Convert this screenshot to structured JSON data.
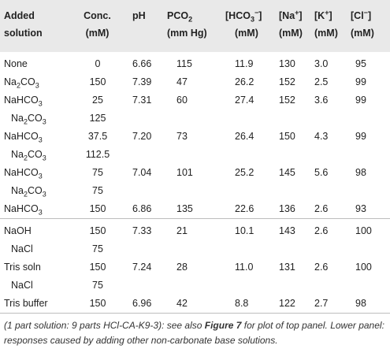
{
  "headers": {
    "solution_line1": "Added",
    "solution_line2": "solution",
    "conc": "Conc.",
    "conc_unit": "(mM)",
    "ph": "pH",
    "pco2_base": "PCO",
    "pco2_sub": "2",
    "pco2_unit": "(mm Hg)",
    "hco3_open": "[HCO",
    "hco3_sub": "3",
    "hco3_sup": "−",
    "hco3_close": "]",
    "hco3_unit": "(mM)",
    "na_open": "[Na",
    "na_sup": "+",
    "na_close": "]",
    "na_unit": "(mM)",
    "k_open": "[K",
    "k_sup": "+",
    "k_close": "]",
    "k_unit": "(mM)",
    "cl_open": "[Cl",
    "cl_sup": "−",
    "cl_close": "]",
    "cl_unit": "(mM)"
  },
  "rows": [
    {
      "solution": "None",
      "conc": "0",
      "ph": "6.66",
      "pco2": "115",
      "hco3": "11.9",
      "na": "130",
      "k": "3.0",
      "cl": "95"
    },
    {
      "solution": "Na",
      "solution_sub": "2",
      "solution_tail": "CO",
      "solution_sub2": "3",
      "conc": "150",
      "ph": "7.39",
      "pco2": "47",
      "hco3": "26.2",
      "na": "152",
      "k": "2.5",
      "cl": "99"
    },
    {
      "solution": "NaHCO",
      "solution_sub": "3",
      "conc": "25",
      "ph": "7.31",
      "pco2": "60",
      "hco3": "27.4",
      "na": "152",
      "k": "3.6",
      "cl": "99"
    },
    {
      "solution": "Na",
      "solution_sub": "2",
      "solution_tail": "CO",
      "solution_sub2": "3",
      "conc": "125"
    },
    {
      "solution": "NaHCO",
      "solution_sub": "3",
      "conc": "37.5",
      "ph": "7.20",
      "pco2": "73",
      "hco3": "26.4",
      "na": "150",
      "k": "4.3",
      "cl": "99"
    },
    {
      "solution": "Na",
      "solution_sub": "2",
      "solution_tail": "CO",
      "solution_sub2": "3",
      "conc": "112.5"
    },
    {
      "solution": "NaHCO",
      "solution_sub": "3",
      "conc": "75",
      "ph": "7.04",
      "pco2": "101",
      "hco3": "25.2",
      "na": "145",
      "k": "5.6",
      "cl": "98"
    },
    {
      "solution": "Na",
      "solution_sub": "2",
      "solution_tail": "CO",
      "solution_sub2": "3",
      "conc": "75"
    },
    {
      "solution": "NaHCO",
      "solution_sub": "3",
      "conc": "150",
      "ph": "6.86",
      "pco2": "135",
      "hco3": "22.6",
      "na": "136",
      "k": "2.6",
      "cl": "93"
    },
    {
      "solution": "NaOH",
      "conc": "150",
      "ph": "7.33",
      "pco2": "21",
      "hco3": "10.1",
      "na": "143",
      "k": "2.6",
      "cl": "100"
    },
    {
      "solution": "NaCl",
      "conc": "75"
    },
    {
      "solution": "Tris soln",
      "conc": "150",
      "ph": "7.24",
      "pco2": "28",
      "hco3": "11.0",
      "na": "131",
      "k": "2.6",
      "cl": "100"
    },
    {
      "solution": "NaCl",
      "conc": "75"
    },
    {
      "solution": "Tris buffer",
      "conc": "150",
      "ph": "6.96",
      "pco2": "42",
      "hco3": "8.8",
      "na": "122",
      "k": "2.7",
      "cl": "98"
    }
  ],
  "caption": {
    "part1": "(1 part solution: 9 parts HCl-CA-K9-3): see also ",
    "figure_ref": "Figure 7",
    "part2": " for plot of top panel. Lower panel: responses caused by adding other non-carbonate base solutions."
  },
  "colors": {
    "header_bg": "#e9e9e9",
    "rule": "#bdbdbd",
    "text": "#222222"
  }
}
